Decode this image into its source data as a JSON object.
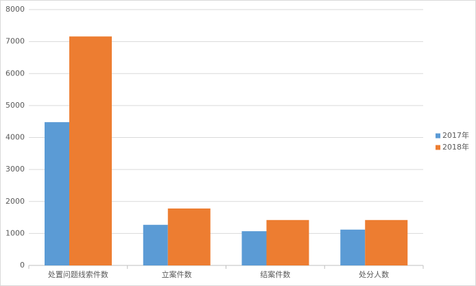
{
  "chart_data": {
    "type": "bar",
    "categories": [
      "处置问题线索件数",
      "立案件数",
      "结案件数",
      "处分人数"
    ],
    "series": [
      {
        "name": "2017年",
        "color": "#5b9bd5",
        "values": [
          4480,
          1270,
          1070,
          1120
        ]
      },
      {
        "name": "2018年",
        "color": "#ed7d31",
        "values": [
          7160,
          1780,
          1420,
          1420
        ]
      }
    ],
    "ylim": [
      0,
      8000
    ],
    "yticks": [
      0,
      1000,
      2000,
      3000,
      4000,
      5000,
      6000,
      7000,
      8000
    ],
    "grid": true,
    "legend": "right"
  }
}
